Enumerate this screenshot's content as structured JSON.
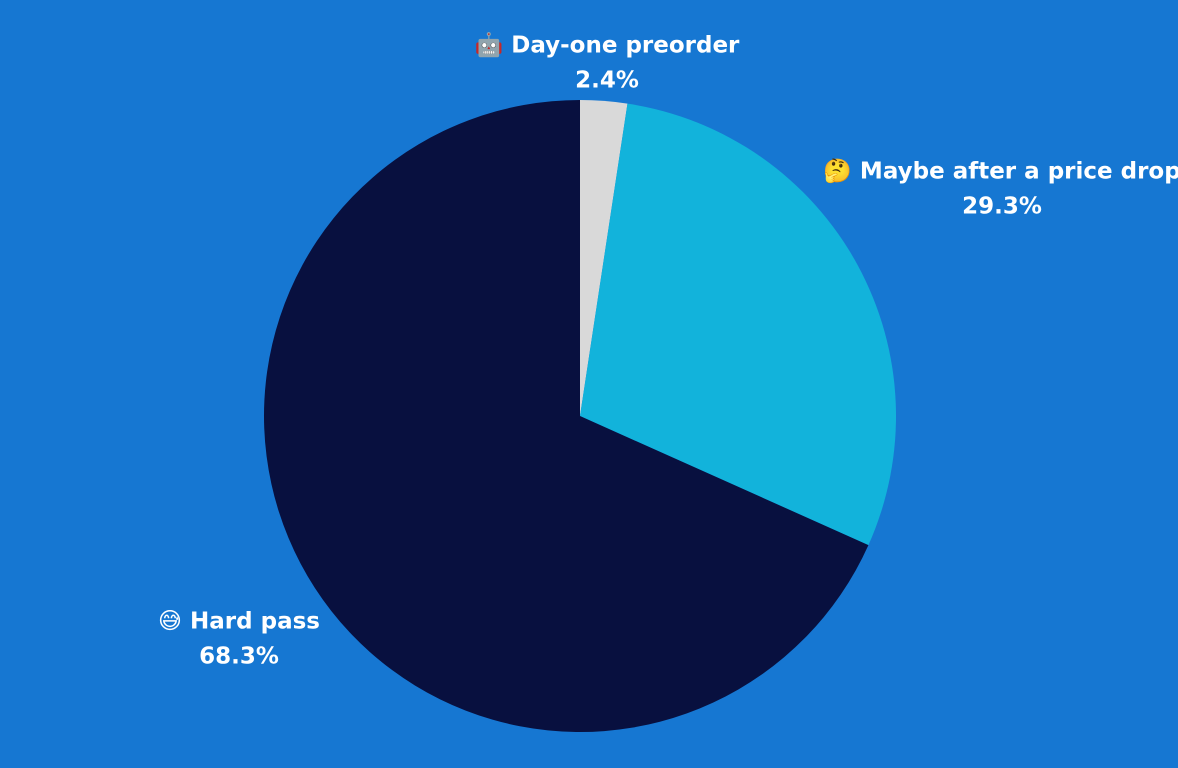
{
  "chart_data": {
    "type": "pie",
    "categories": [
      "🤖 Day-one preorder",
      "🤔 Maybe after a price drop",
      "😅 Hard pass"
    ],
    "values": [
      2.4,
      29.3,
      68.3
    ],
    "value_labels": [
      "2.4%",
      "29.3%",
      "68.3%"
    ],
    "colors": [
      "#d9d9d9",
      "#12b3db",
      "#08103f"
    ]
  }
}
